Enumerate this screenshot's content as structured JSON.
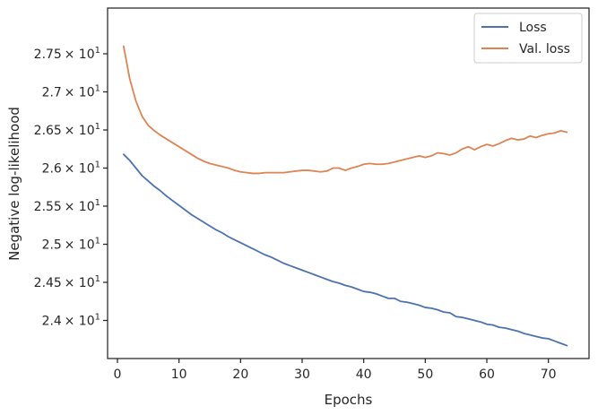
{
  "chart_data": {
    "type": "line",
    "xlabel": "Epochs",
    "ylabel": "Negative log-likelihood",
    "xlim": [
      -1.6,
      76.6
    ],
    "ylim": [
      23.5,
      28.1
    ],
    "x_ticks": [
      0,
      10,
      20,
      30,
      40,
      50,
      60,
      70
    ],
    "x_tick_labels": [
      "0",
      "10",
      "20",
      "30",
      "40",
      "50",
      "60",
      "70"
    ],
    "y_ticks": [
      {
        "value": 24.0,
        "mant": "2.4"
      },
      {
        "value": 24.5,
        "mant": "2.45"
      },
      {
        "value": 25.0,
        "mant": "2.5"
      },
      {
        "value": 25.5,
        "mant": "2.55"
      },
      {
        "value": 26.0,
        "mant": "2.6"
      },
      {
        "value": 26.5,
        "mant": "2.65"
      },
      {
        "value": 27.0,
        "mant": "2.7"
      },
      {
        "value": 27.5,
        "mant": "2.75"
      }
    ],
    "y_tick_suffix": "× 10",
    "y_tick_exp": "1",
    "legend_position": "top-right",
    "grid": false,
    "x": [
      1,
      2,
      3,
      4,
      5,
      6,
      7,
      8,
      9,
      10,
      11,
      12,
      13,
      14,
      15,
      16,
      17,
      18,
      19,
      20,
      21,
      22,
      23,
      24,
      25,
      26,
      27,
      28,
      29,
      30,
      31,
      32,
      33,
      34,
      35,
      36,
      37,
      38,
      39,
      40,
      41,
      42,
      43,
      44,
      45,
      46,
      47,
      48,
      49,
      50,
      51,
      52,
      53,
      54,
      55,
      56,
      57,
      58,
      59,
      60,
      61,
      62,
      63,
      64,
      65,
      66,
      67,
      68,
      69,
      70,
      71,
      72,
      73
    ],
    "series": [
      {
        "name": "Loss",
        "color": "#4c72b0",
        "values": [
          26.18,
          26.1,
          26.0,
          25.9,
          25.83,
          25.76,
          25.7,
          25.63,
          25.57,
          25.51,
          25.45,
          25.39,
          25.34,
          25.29,
          25.24,
          25.19,
          25.15,
          25.1,
          25.06,
          25.02,
          24.98,
          24.94,
          24.9,
          24.86,
          24.83,
          24.79,
          24.75,
          24.72,
          24.69,
          24.66,
          24.63,
          24.6,
          24.57,
          24.54,
          24.51,
          24.49,
          24.46,
          24.44,
          24.41,
          24.38,
          24.37,
          24.35,
          24.32,
          24.29,
          24.29,
          24.25,
          24.24,
          24.22,
          24.2,
          24.17,
          24.16,
          24.14,
          24.11,
          24.1,
          24.05,
          24.04,
          24.02,
          24.0,
          23.98,
          23.95,
          23.94,
          23.91,
          23.9,
          23.88,
          23.86,
          23.83,
          23.81,
          23.79,
          23.77,
          23.76,
          23.73,
          23.7,
          23.67
        ]
      },
      {
        "name": "Val. loss",
        "color": "#dd8452",
        "values": [
          27.6,
          27.17,
          26.88,
          26.68,
          26.56,
          26.49,
          26.43,
          26.38,
          26.33,
          26.28,
          26.23,
          26.18,
          26.13,
          26.09,
          26.06,
          26.04,
          26.02,
          26.0,
          25.97,
          25.95,
          25.94,
          25.93,
          25.93,
          25.94,
          25.94,
          25.94,
          25.94,
          25.95,
          25.96,
          25.97,
          25.97,
          25.96,
          25.95,
          25.96,
          26.0,
          26.0,
          25.97,
          26.0,
          26.02,
          26.05,
          26.06,
          26.05,
          26.05,
          26.06,
          26.08,
          26.1,
          26.12,
          26.14,
          26.16,
          26.14,
          26.16,
          26.2,
          26.19,
          26.17,
          26.2,
          26.25,
          26.28,
          26.24,
          26.28,
          26.31,
          26.29,
          26.32,
          26.36,
          26.39,
          26.37,
          26.38,
          26.42,
          26.4,
          26.43,
          26.45,
          26.46,
          26.49,
          26.47
        ]
      }
    ]
  }
}
